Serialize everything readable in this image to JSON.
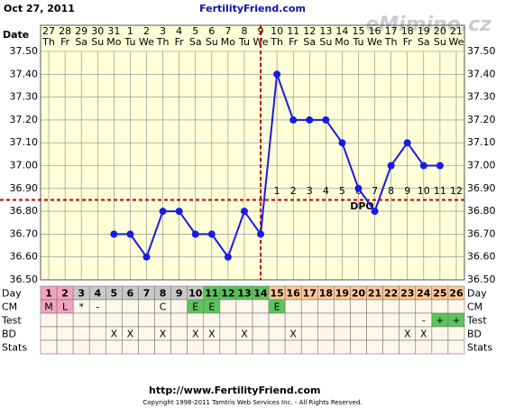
{
  "chart_data": {
    "type": "line",
    "title": "FertilityFriend.com",
    "date": "Oct 27, 2011",
    "watermark": "eMimino.cz",
    "x_label": "Date",
    "categories": [
      "27",
      "28",
      "29",
      "30",
      "31",
      "1",
      "2",
      "3",
      "4",
      "5",
      "6",
      "7",
      "8",
      "9",
      "10",
      "11",
      "12",
      "13",
      "14",
      "15",
      "16",
      "17",
      "18",
      "19",
      "20",
      "21"
    ],
    "weekdays": [
      "Th",
      "Fr",
      "Sa",
      "Su",
      "Mo",
      "Tu",
      "We",
      "Th",
      "Fr",
      "Sa",
      "Su",
      "Mo",
      "Tu",
      "We",
      "Th",
      "Fr",
      "Sa",
      "Su",
      "Mo",
      "Tu",
      "We",
      "Th",
      "Fr",
      "Sa",
      "Su",
      "We"
    ],
    "values": [
      null,
      null,
      null,
      null,
      36.7,
      36.7,
      36.6,
      36.8,
      36.8,
      36.7,
      36.7,
      36.6,
      36.8,
      36.7,
      37.4,
      37.2,
      37.2,
      37.2,
      37.1,
      36.9,
      36.8,
      37.0,
      37.1,
      37.0,
      37.0,
      null
    ],
    "color": "#1a1ae6",
    "ylim": [
      36.5,
      37.5
    ],
    "yticks": [
      {
        "value": 36.5,
        "label": "36.50"
      },
      {
        "value": 36.6,
        "label": "36.60"
      },
      {
        "value": 36.7,
        "label": "36.70"
      },
      {
        "value": 36.8,
        "label": "36.80"
      },
      {
        "value": 36.9,
        "label": "36.90"
      },
      {
        "value": 37.0,
        "label": "37.00"
      },
      {
        "value": 37.1,
        "label": "37.10"
      },
      {
        "value": 37.2,
        "label": "37.20"
      },
      {
        "value": 37.3,
        "label": "37.30"
      },
      {
        "value": 37.4,
        "label": "37.40"
      },
      {
        "value": 37.5,
        "label": "37.50"
      }
    ],
    "grid": true,
    "coverline": 36.85,
    "ovulation_day": 14,
    "dpo": [
      1,
      2,
      3,
      4,
      5,
      6,
      7,
      8,
      9,
      10,
      11,
      12
    ],
    "dpo_label": "DPO"
  },
  "table": {
    "rows": [
      {
        "label": "Day",
        "cells": [
          1,
          2,
          3,
          4,
          5,
          6,
          7,
          8,
          9,
          10,
          11,
          12,
          13,
          14,
          15,
          16,
          17,
          18,
          19,
          20,
          21,
          22,
          23,
          24,
          25,
          26
        ],
        "colors": [
          "#f4a3bf",
          "#f4a3bf",
          "#c8c8c8",
          "#c8c8c8",
          "#c8c8c8",
          "#c8c8c8",
          "#c8c8c8",
          "#c8c8c8",
          "#c8c8c8",
          "#c8c8c8",
          "#5cc45c",
          "#5cc45c",
          "#5cc45c",
          "#5cc45c",
          "#ffc896",
          "#ffc896",
          "#ffc896",
          "#ffc896",
          "#ffc896",
          "#ffc896",
          "#ffc896",
          "#ffc896",
          "#ffc896",
          "#ffc896",
          "#ffc896",
          "#ffc896"
        ]
      },
      {
        "label": "CM",
        "cells": [
          "M",
          "L",
          "*",
          "-",
          null,
          null,
          null,
          "C",
          null,
          "E",
          "E",
          null,
          null,
          null,
          "E",
          null,
          null,
          null,
          null,
          null,
          null,
          null,
          null,
          null,
          null,
          null
        ],
        "colors": [
          "#f4a3bf",
          "#f4a3bf",
          null,
          null,
          null,
          null,
          null,
          null,
          null,
          "#5cc45c",
          "#5cc45c",
          null,
          null,
          null,
          "#5cc45c",
          null,
          null,
          null,
          null,
          null,
          null,
          null,
          null,
          null,
          null,
          null
        ]
      },
      {
        "label": "Test",
        "cells": [
          null,
          null,
          null,
          null,
          null,
          null,
          null,
          null,
          null,
          null,
          null,
          null,
          null,
          null,
          null,
          null,
          null,
          null,
          null,
          null,
          null,
          null,
          null,
          "-",
          "+",
          "+"
        ],
        "colors": [
          null,
          null,
          null,
          null,
          null,
          null,
          null,
          null,
          null,
          null,
          null,
          null,
          null,
          null,
          null,
          null,
          null,
          null,
          null,
          null,
          null,
          null,
          null,
          null,
          "#5cc45c",
          "#5cc45c"
        ]
      },
      {
        "label": "BD",
        "cells": [
          null,
          null,
          null,
          null,
          "X",
          "X",
          null,
          "X",
          null,
          "X",
          "X",
          null,
          "X",
          null,
          null,
          "X",
          null,
          null,
          null,
          null,
          null,
          null,
          "X",
          "X",
          null,
          null
        ],
        "colors": []
      },
      {
        "label": "Stats",
        "cells": [],
        "colors": []
      }
    ]
  },
  "footer": {
    "url": "http://www.FertilityFriend.com",
    "copyright": "Copyright 1998-2011 Tamtris Web Services Inc. - All Rights Reserved."
  }
}
